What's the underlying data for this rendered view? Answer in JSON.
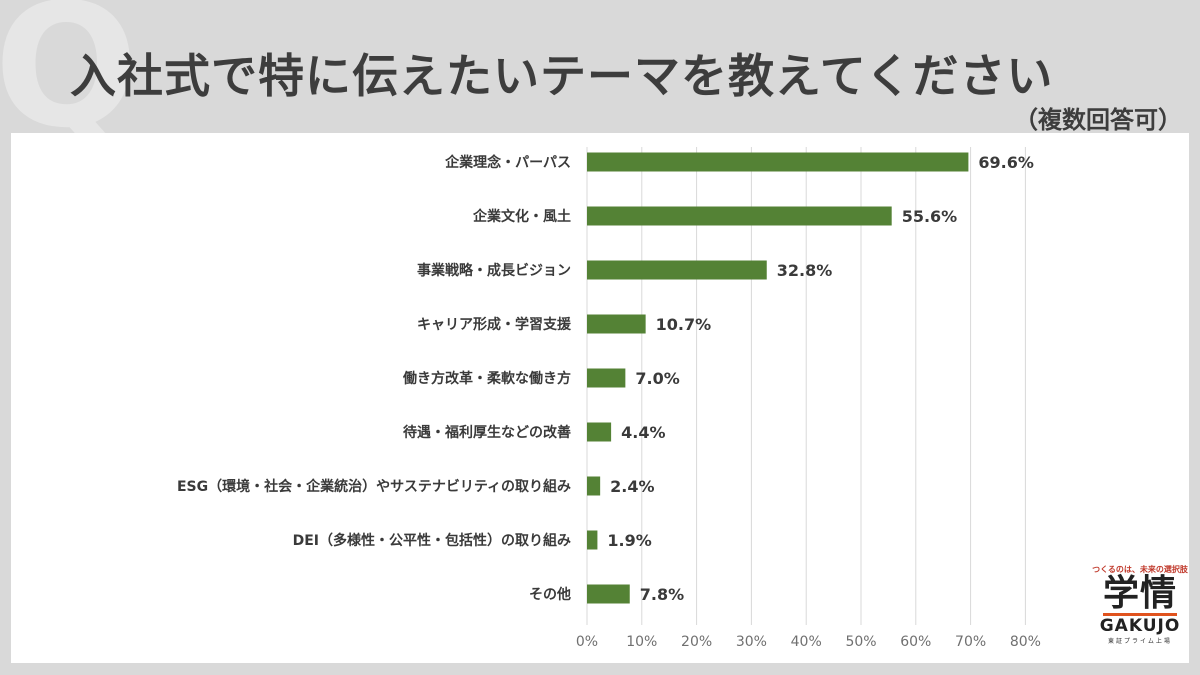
{
  "title": "入社式で特に伝えたいテーマを教えてください",
  "subtitle": "（複数回答可）",
  "q_mark": "Q",
  "colors": {
    "bar": "#548235",
    "background": "#d9d9d9",
    "panel": "#ffffff"
  },
  "chart_data": {
    "type": "bar",
    "orientation": "horizontal",
    "categories": [
      "企業理念・パーパス",
      "企業文化・風土",
      "事業戦略・成長ビジョン",
      "キャリア形成・学習支援",
      "働き方改革・柔軟な働き方",
      "待遇・福利厚生などの改善",
      "ESG（環境・社会・企業統治）やサステナビリティの取り組み",
      "DEI（多様性・公平性・包括性）の取り組み",
      "その他"
    ],
    "values": [
      69.6,
      55.6,
      32.8,
      10.7,
      7.0,
      4.4,
      2.4,
      1.9,
      7.8
    ],
    "value_labels": [
      "69.6%",
      "55.6%",
      "32.8%",
      "10.7%",
      "7.0%",
      "4.4%",
      "2.4%",
      "1.9%",
      "7.8%"
    ],
    "xlim": [
      0,
      80
    ],
    "ticks": [
      0,
      10,
      20,
      30,
      40,
      50,
      60,
      70,
      80
    ],
    "tick_labels": [
      "0%",
      "10%",
      "20%",
      "30%",
      "40%",
      "50%",
      "60%",
      "70%",
      "80%"
    ],
    "grid": true,
    "xlabel": "",
    "ylabel": ""
  },
  "logo": {
    "tagline": "つくるのは、未来の選択肢",
    "name_jp": "学情",
    "name_en": "GAKUJO",
    "sub": "東証プライム上場"
  }
}
